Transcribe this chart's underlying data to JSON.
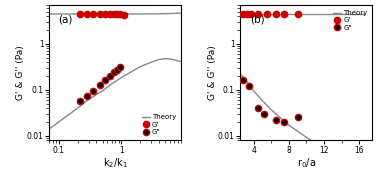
{
  "panel_a": {
    "xlabel": "k$_2$/k$_1$",
    "ylabel": "G' & G'' (Pa)",
    "label": "(a)",
    "xlim": [
      0.07,
      9.0
    ],
    "ylim": [
      0.008,
      7.0
    ],
    "theory_G_prime_x": [
      0.07,
      0.1,
      0.2,
      0.3,
      0.5,
      0.7,
      1.0,
      1.5,
      2.0,
      3.0,
      4.0,
      5.0,
      6.0,
      7.0,
      8.0,
      9.0
    ],
    "theory_G_prime_y": [
      4.5,
      4.5,
      4.5,
      4.5,
      4.5,
      4.5,
      4.5,
      4.5,
      4.5,
      4.52,
      4.55,
      4.58,
      4.61,
      4.64,
      4.67,
      4.7
    ],
    "theory_G_double_x": [
      0.07,
      0.1,
      0.15,
      0.2,
      0.3,
      0.5,
      0.7,
      1.0,
      1.5,
      2.0,
      3.0,
      4.0,
      5.0,
      6.0,
      7.0,
      8.0,
      9.0
    ],
    "theory_G_double_y": [
      0.014,
      0.02,
      0.03,
      0.04,
      0.062,
      0.095,
      0.135,
      0.185,
      0.255,
      0.32,
      0.4,
      0.46,
      0.48,
      0.47,
      0.45,
      0.43,
      0.41
    ],
    "gprime_x": [
      0.22,
      0.28,
      0.35,
      0.45,
      0.55,
      0.65,
      0.75,
      0.85,
      0.95,
      1.1
    ],
    "gprime_y": [
      4.5,
      4.5,
      4.5,
      4.5,
      4.5,
      4.5,
      4.5,
      4.5,
      4.5,
      4.3
    ],
    "gdoubleprime_x": [
      0.22,
      0.28,
      0.35,
      0.45,
      0.55,
      0.65,
      0.75,
      0.85,
      0.95
    ],
    "gdoubleprime_y": [
      0.058,
      0.075,
      0.095,
      0.13,
      0.165,
      0.2,
      0.24,
      0.27,
      0.31
    ],
    "xticks": [
      0.1,
      1
    ],
    "xtick_labels": [
      "0.1",
      "1"
    ],
    "yticks": [
      0.01,
      0.1,
      1
    ],
    "ytick_labels": [
      "0.01",
      "0.1",
      "1"
    ],
    "legend_loc": "lower right"
  },
  "panel_b": {
    "xlabel": "r$_0$/a",
    "ylabel": "G' & G'' (Pa)",
    "label": "(b)",
    "xlim": [
      2.5,
      17.5
    ],
    "ylim": [
      0.008,
      7.0
    ],
    "theory_G_prime_x": [
      2.5,
      3.0,
      4.0,
      5.0,
      6.0,
      7.0,
      8.0,
      10.0,
      12.0,
      14.0,
      16.5
    ],
    "theory_G_prime_y": [
      4.5,
      4.5,
      4.5,
      4.5,
      4.5,
      4.5,
      4.5,
      4.5,
      4.5,
      4.5,
      4.5
    ],
    "theory_G_double_x": [
      2.5,
      3.0,
      3.5,
      4.0,
      5.0,
      6.0,
      7.0,
      8.0,
      10.0,
      12.0,
      14.0,
      16.5
    ],
    "theory_G_double_y": [
      0.22,
      0.17,
      0.13,
      0.095,
      0.058,
      0.037,
      0.025,
      0.017,
      0.0092,
      0.0054,
      0.0033,
      0.002
    ],
    "gprime_x": [
      2.8,
      3.2,
      3.7,
      4.5,
      5.5,
      6.5,
      7.5,
      9.0
    ],
    "gprime_y": [
      4.5,
      4.5,
      4.5,
      4.5,
      4.5,
      4.5,
      4.5,
      4.5
    ],
    "gdoubleprime_x": [
      2.8,
      3.5,
      4.5,
      5.2,
      6.5,
      7.5,
      9.0
    ],
    "gdoubleprime_y": [
      0.16,
      0.12,
      0.04,
      0.03,
      0.022,
      0.02,
      0.025
    ],
    "xticks": [
      4,
      8,
      12,
      16
    ],
    "xtick_labels": [
      "4",
      "8",
      "12",
      "16"
    ],
    "yticks": [
      0.01,
      0.1,
      1
    ],
    "ytick_labels": [
      "0.01",
      "0.1",
      "1"
    ],
    "legend_loc": "upper right"
  },
  "theory_color": "#888888",
  "gprime_color": "#cc0000",
  "gdoubleprime_facecolor": "black",
  "gdoubleprime_edgecolor": "#cc0000",
  "marker_size": 4.5,
  "line_width": 1.0
}
